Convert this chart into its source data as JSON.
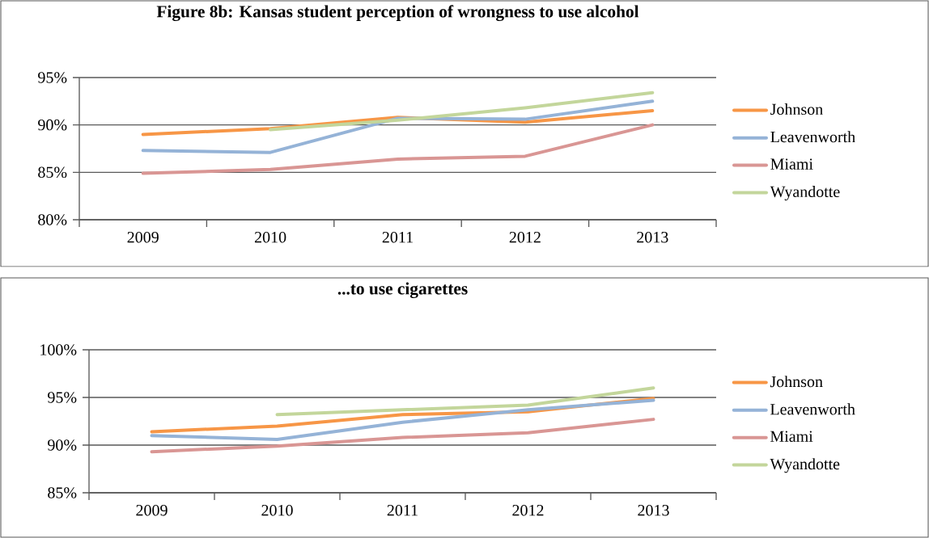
{
  "chart_data": [
    {
      "type": "line",
      "title": "**Figure 8b: Kansas student perception of wrongness to use alcohol**",
      "categories": [
        "2009",
        "2010",
        "2011",
        "2012",
        "2013"
      ],
      "series": [
        {
          "name": "Johnson",
          "color": "#f79646",
          "values": [
            89.0,
            89.6,
            90.8,
            90.3,
            91.5
          ]
        },
        {
          "name": "Leavenworth",
          "color": "#95b3d7",
          "values": [
            87.3,
            87.1,
            90.7,
            90.6,
            92.5
          ]
        },
        {
          "name": "Miami",
          "color": "#d99694",
          "values": [
            84.9,
            85.3,
            86.4,
            86.7,
            90.0
          ]
        },
        {
          "name": "Wyandotte",
          "color": "#c3d69b",
          "values": [
            null,
            89.5,
            90.5,
            91.8,
            93.4
          ]
        }
      ],
      "ylim": [
        80,
        95
      ],
      "yticks": [
        {
          "value": 80,
          "label": "80%"
        },
        {
          "value": 85,
          "label": "85%"
        },
        {
          "value": 90,
          "label": "90%"
        },
        {
          "value": 95,
          "label": "95%"
        }
      ],
      "grid": "y",
      "legend": "right"
    },
    {
      "type": "line",
      "title": "**...to use cigarettes**",
      "categories": [
        "2009",
        "2010",
        "2011",
        "2012",
        "2013"
      ],
      "series": [
        {
          "name": "Johnson",
          "color": "#f79646",
          "values": [
            91.4,
            92.0,
            93.2,
            93.5,
            94.9
          ]
        },
        {
          "name": "Leavenworth",
          "color": "#95b3d7",
          "values": [
            91.0,
            90.6,
            92.4,
            93.7,
            94.7
          ]
        },
        {
          "name": "Miami",
          "color": "#d99694",
          "values": [
            89.3,
            89.9,
            90.8,
            91.3,
            92.7
          ]
        },
        {
          "name": "Wyandotte",
          "color": "#c3d69b",
          "values": [
            null,
            93.2,
            93.7,
            94.2,
            96.0
          ]
        }
      ],
      "ylim": [
        85,
        100
      ],
      "yticks": [
        {
          "value": 85,
          "label": "85%"
        },
        {
          "value": 90,
          "label": "90%"
        },
        {
          "value": 95,
          "label": "95%"
        },
        {
          "value": 100,
          "label": "100%"
        }
      ],
      "grid": "y",
      "legend": "right"
    }
  ]
}
